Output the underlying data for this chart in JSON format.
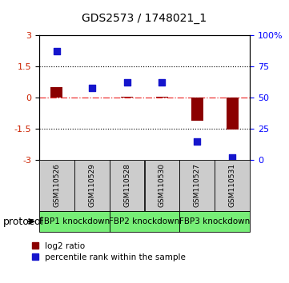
{
  "title": "GDS2573 / 1748021_1",
  "samples": [
    "GSM110526",
    "GSM110529",
    "GSM110528",
    "GSM110530",
    "GSM110527",
    "GSM110531"
  ],
  "log2_ratio": [
    0.5,
    0.02,
    0.05,
    0.05,
    -1.1,
    -1.55
  ],
  "percentile_rank": [
    87,
    58,
    62,
    62,
    15,
    2
  ],
  "protocol_groups": [
    {
      "label": "FBP1 knockdown",
      "start": 0,
      "end": 1
    },
    {
      "label": "FBP2 knockdown",
      "start": 2,
      "end": 3
    },
    {
      "label": "FBP3 knockdown",
      "start": 4,
      "end": 5
    }
  ],
  "ylim_left": [
    -3,
    3
  ],
  "ylim_right": [
    0,
    100
  ],
  "yticks_left": [
    -3,
    -1.5,
    0,
    1.5,
    3
  ],
  "yticks_left_labels": [
    "-3",
    "-1.5",
    "0",
    "1.5",
    "3"
  ],
  "yticks_right": [
    0,
    25,
    50,
    75,
    100
  ],
  "yticks_right_labels": [
    "0",
    "25",
    "50",
    "75",
    "100%"
  ],
  "bar_color": "#8B0000",
  "dot_color": "#1515CC",
  "bar_width": 0.35,
  "dot_size": 40,
  "hline_color": "#EE3333",
  "hline_style": "-.",
  "dotline_color": "black",
  "dotline_style": ":",
  "dotline_yticks": [
    -1.5,
    1.5
  ],
  "legend_bar_label": "log2 ratio",
  "legend_dot_label": "percentile rank within the sample",
  "protocol_label": "protocol",
  "bg_color": "#ffffff",
  "plot_bg": "#ffffff",
  "sample_bg": "#cccccc",
  "proto_color": "#77EE77",
  "title_fontsize": 10,
  "tick_fontsize": 8,
  "sample_fontsize": 6.5,
  "proto_fontsize": 7.5,
  "legend_fontsize": 7.5
}
